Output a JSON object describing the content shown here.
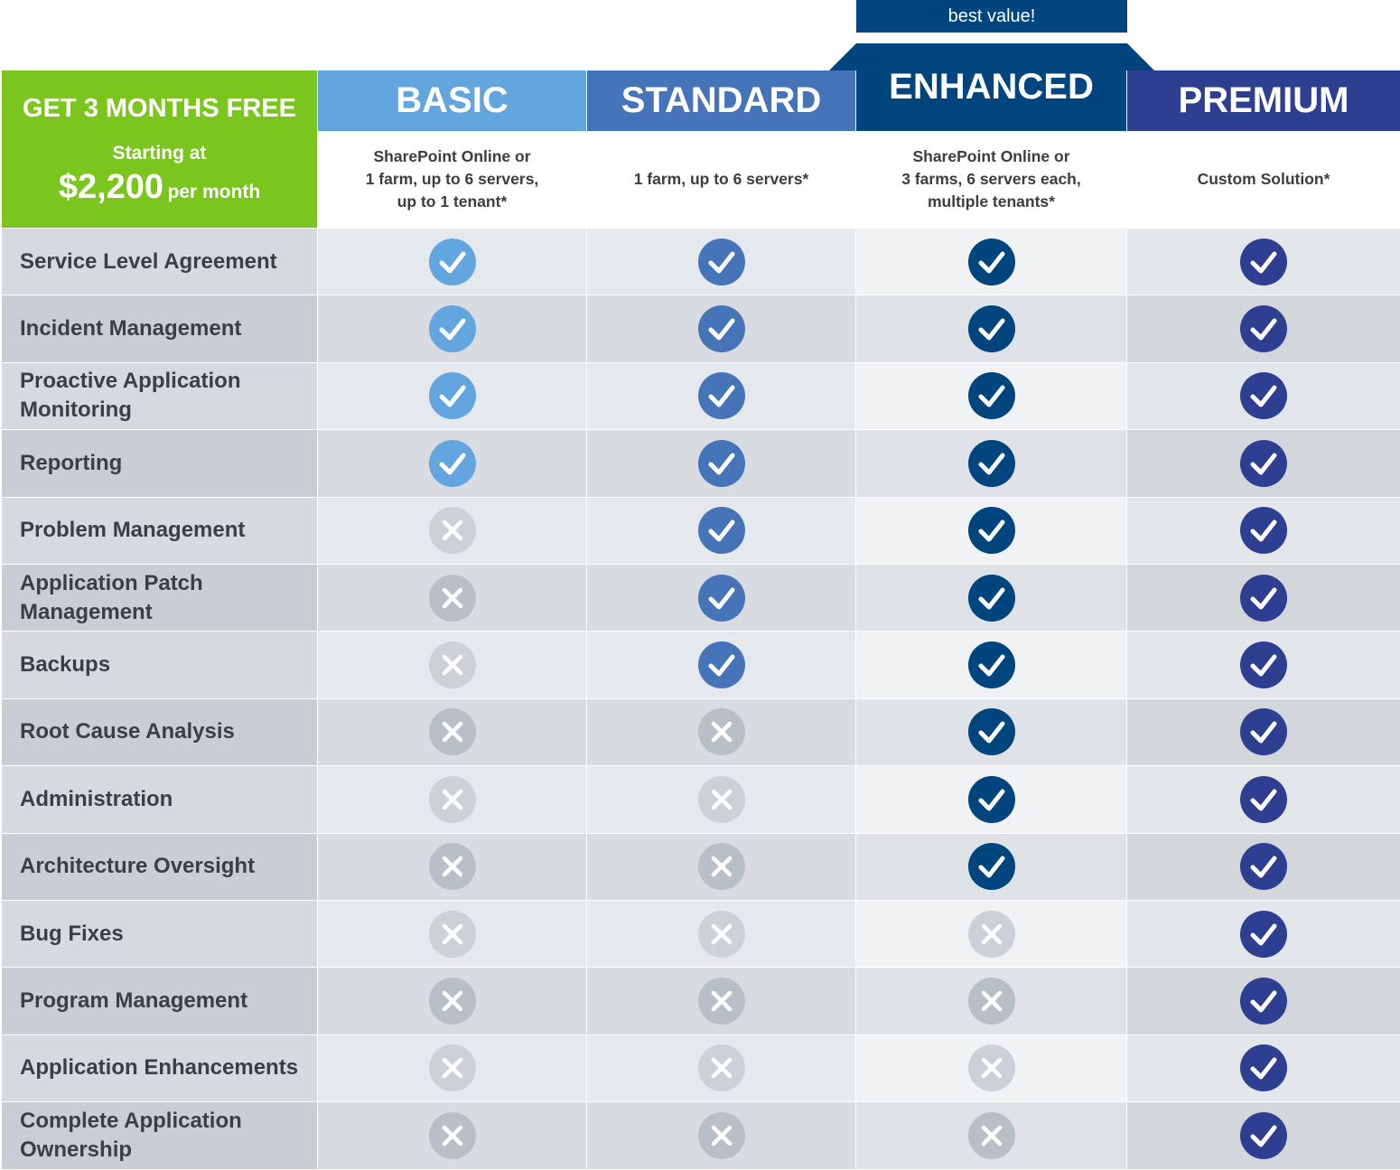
{
  "badge": "best value!",
  "promo": {
    "headline": "GET 3 MONTHS FREE",
    "starting": "Starting at",
    "price": "$2,200",
    "per": "per month"
  },
  "plans": [
    {
      "name": "BASIC",
      "desc": "SharePoint Online or\n1 farm, up to 6 servers,\nup to 1 tenant*"
    },
    {
      "name": "STANDARD",
      "desc": "1 farm, up to 6 servers*"
    },
    {
      "name": "ENHANCED",
      "desc": "SharePoint Online or\n3 farms, 6 servers each,\nmultiple tenants*"
    },
    {
      "name": "PREMIUM",
      "desc": "Custom Solution*"
    }
  ],
  "colors": {
    "promo": "#7ac51e",
    "basic": "#63a6df",
    "standard": "#4674b9",
    "enhanced": "#00457d",
    "premium": "#2e3f91",
    "excluded": "#b9bfc6"
  },
  "features": [
    {
      "label": "Service Level Agreement",
      "included": [
        true,
        true,
        true,
        true
      ]
    },
    {
      "label": "Incident Management",
      "included": [
        true,
        true,
        true,
        true
      ]
    },
    {
      "label": "Proactive Application\nMonitoring",
      "included": [
        true,
        true,
        true,
        true
      ]
    },
    {
      "label": "Reporting",
      "included": [
        true,
        true,
        true,
        true
      ]
    },
    {
      "label": "Problem Management",
      "included": [
        false,
        true,
        true,
        true
      ]
    },
    {
      "label": "Application Patch\nManagement",
      "included": [
        false,
        true,
        true,
        true
      ]
    },
    {
      "label": "Backups",
      "included": [
        false,
        true,
        true,
        true
      ]
    },
    {
      "label": "Root Cause Analysis",
      "included": [
        false,
        false,
        true,
        true
      ]
    },
    {
      "label": "Administration",
      "included": [
        false,
        false,
        true,
        true
      ]
    },
    {
      "label": "Architecture Oversight",
      "included": [
        false,
        false,
        true,
        true
      ]
    },
    {
      "label": "Bug Fixes",
      "included": [
        false,
        false,
        false,
        true
      ]
    },
    {
      "label": "Program Management",
      "included": [
        false,
        false,
        false,
        true
      ]
    },
    {
      "label": "Application Enhancements",
      "included": [
        false,
        false,
        false,
        true
      ]
    },
    {
      "label": "Complete Application\nOwnership",
      "included": [
        false,
        false,
        false,
        true
      ]
    }
  ]
}
